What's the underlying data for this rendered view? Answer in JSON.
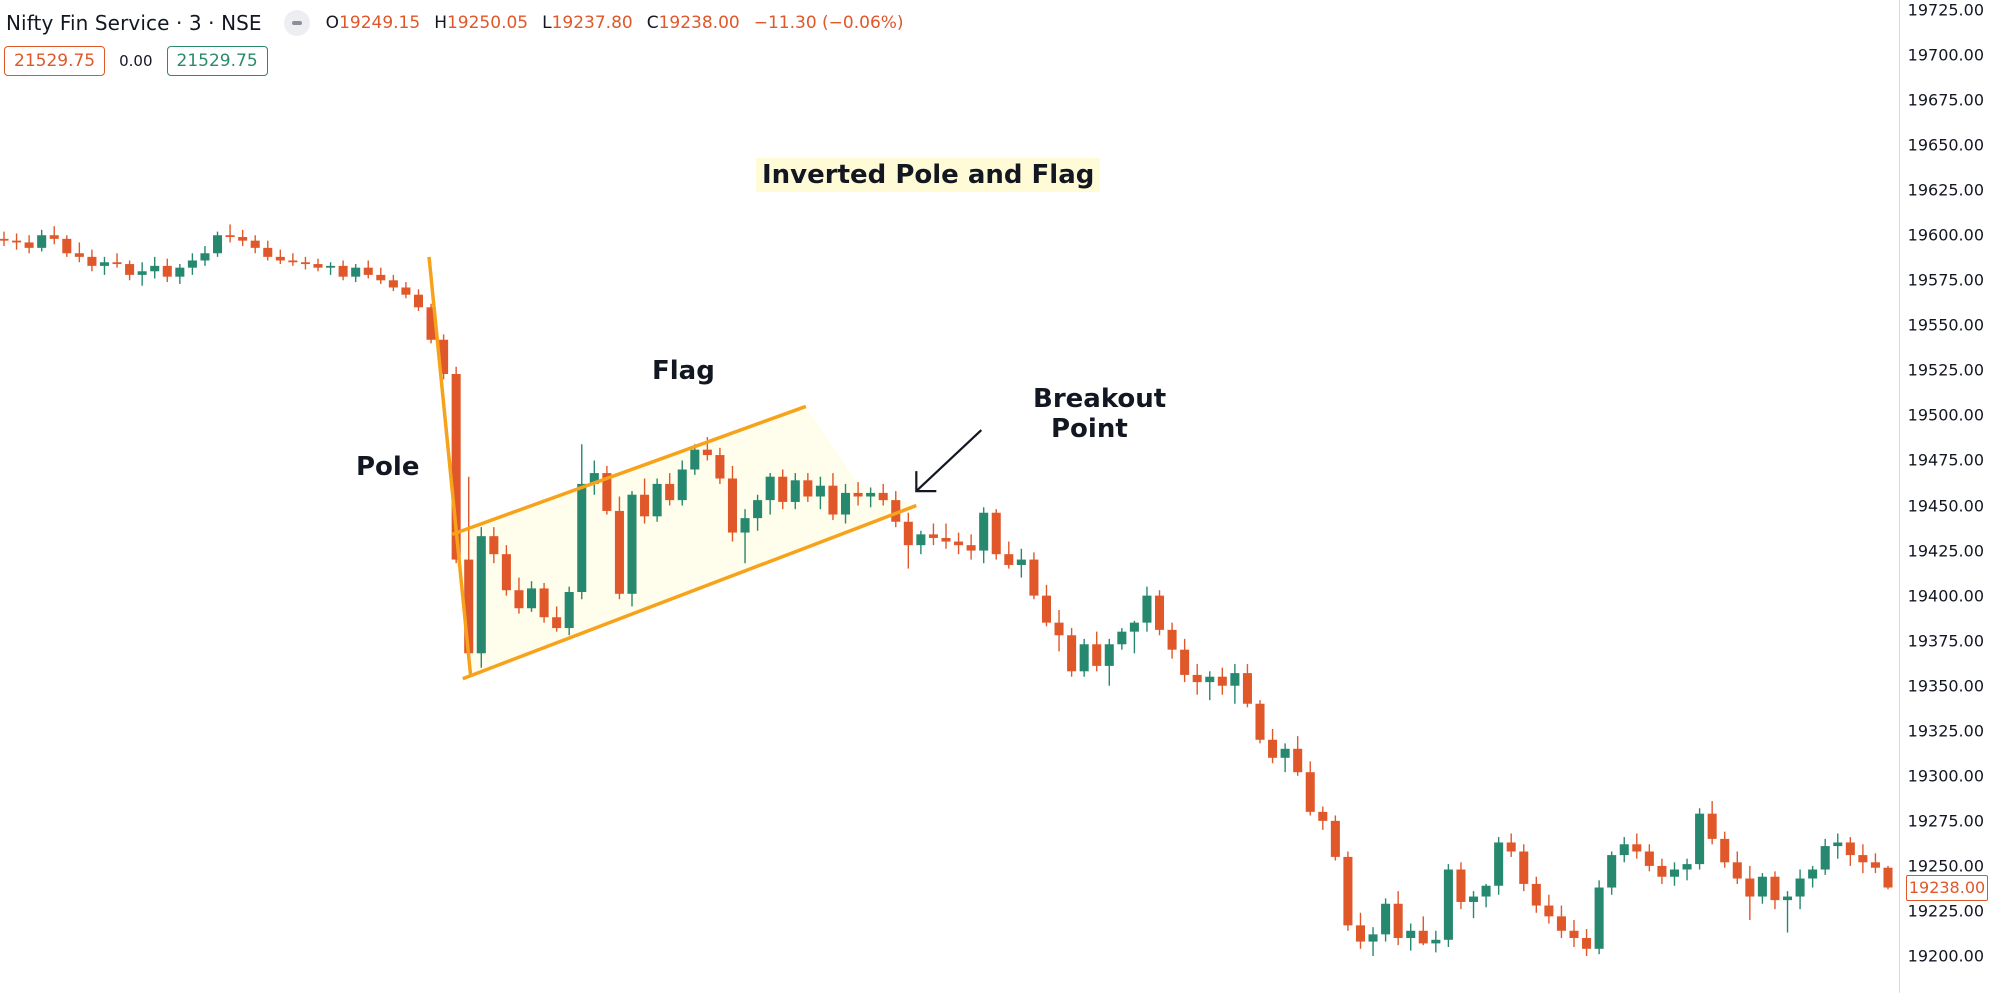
{
  "header": {
    "symbol": "Nifty Fin Service · 3 · NSE",
    "ohlc": [
      {
        "label": "O",
        "value": "19249.15"
      },
      {
        "label": "H",
        "value": "19250.05"
      },
      {
        "label": "L",
        "value": "19237.80"
      },
      {
        "label": "C",
        "value": "19238.00"
      }
    ],
    "change": "−11.30 (−0.06%)",
    "sell_price": "21529.75",
    "spread": "0.00",
    "buy_price": "21529.75"
  },
  "colors": {
    "up": "#26886e",
    "down": "#e0572a",
    "annotation": "#f7a21b",
    "flag_fill": "#fffdeb"
  },
  "annotations": {
    "title": "Inverted Pole and Flag",
    "pole": "Pole",
    "flag": "Flag",
    "breakout_line1": "Breakout",
    "breakout_line2": "Point"
  },
  "price_axis": {
    "ticks": [
      "19725.00",
      "19700.00",
      "19675.00",
      "19650.00",
      "19625.00",
      "19600.00",
      "19575.00",
      "19550.00",
      "19525.00",
      "19500.00",
      "19475.00",
      "19450.00",
      "19425.00",
      "19400.00",
      "19375.00",
      "19350.00",
      "19325.00",
      "19300.00",
      "19275.00",
      "19250.00",
      "19225.00",
      "19200.00"
    ],
    "last_price": "19238.00"
  },
  "chart_data": {
    "type": "candlestick",
    "title": "Inverted Pole and Flag",
    "ylim": [
      19195,
      19730
    ],
    "last_price": 19238.0,
    "candles_ohlc": [
      [
        19598,
        19602,
        19594,
        19597
      ],
      [
        19597,
        19601,
        19592,
        19596
      ],
      [
        19596,
        19600,
        19590,
        19593
      ],
      [
        19593,
        19603,
        19591,
        19600
      ],
      [
        19600,
        19605,
        19595,
        19598
      ],
      [
        19598,
        19600,
        19588,
        19590
      ],
      [
        19590,
        19596,
        19585,
        19588
      ],
      [
        19588,
        19592,
        19580,
        19583
      ],
      [
        19583,
        19588,
        19578,
        19585
      ],
      [
        19585,
        19590,
        19582,
        19584
      ],
      [
        19584,
        19586,
        19575,
        19578
      ],
      [
        19578,
        19585,
        19572,
        19580
      ],
      [
        19580,
        19588,
        19576,
        19583
      ],
      [
        19583,
        19587,
        19574,
        19577
      ],
      [
        19577,
        19584,
        19573,
        19582
      ],
      [
        19582,
        19590,
        19578,
        19586
      ],
      [
        19586,
        19594,
        19583,
        19590
      ],
      [
        19590,
        19602,
        19588,
        19600
      ],
      [
        19600,
        19606,
        19596,
        19599
      ],
      [
        19599,
        19603,
        19594,
        19597
      ],
      [
        19597,
        19600,
        19590,
        19593
      ],
      [
        19593,
        19597,
        19586,
        19588
      ],
      [
        19588,
        19592,
        19584,
        19586
      ],
      [
        19586,
        19590,
        19583,
        19585
      ],
      [
        19585,
        19588,
        19581,
        19584
      ],
      [
        19584,
        19587,
        19580,
        19582
      ],
      [
        19582,
        19585,
        19578,
        19583
      ],
      [
        19583,
        19586,
        19575,
        19577
      ],
      [
        19577,
        19584,
        19574,
        19582
      ],
      [
        19582,
        19586,
        19576,
        19578
      ],
      [
        19578,
        19582,
        19573,
        19575
      ],
      [
        19575,
        19578,
        19569,
        19571
      ],
      [
        19571,
        19574,
        19565,
        19567
      ],
      [
        19567,
        19570,
        19558,
        19560
      ],
      [
        19560,
        19562,
        19540,
        19542
      ],
      [
        19542,
        19545,
        19520,
        19523
      ],
      [
        19523,
        19527,
        19418,
        19420
      ],
      [
        19420,
        19466,
        19364,
        19368
      ],
      [
        19368,
        19438,
        19360,
        19433
      ],
      [
        19433,
        19438,
        19418,
        19423
      ],
      [
        19423,
        19428,
        19400,
        19403
      ],
      [
        19403,
        19410,
        19390,
        19393
      ],
      [
        19393,
        19408,
        19391,
        19404
      ],
      [
        19404,
        19407,
        19385,
        19388
      ],
      [
        19388,
        19394,
        19380,
        19382
      ],
      [
        19382,
        19405,
        19378,
        19402
      ],
      [
        19402,
        19484,
        19398,
        19462
      ],
      [
        19462,
        19475,
        19456,
        19468
      ],
      [
        19468,
        19472,
        19445,
        19447
      ],
      [
        19447,
        19455,
        19398,
        19401
      ],
      [
        19401,
        19458,
        19394,
        19456
      ],
      [
        19456,
        19465,
        19440,
        19444
      ],
      [
        19444,
        19465,
        19441,
        19462
      ],
      [
        19462,
        19468,
        19450,
        19453
      ],
      [
        19453,
        19475,
        19450,
        19470
      ],
      [
        19470,
        19484,
        19467,
        19481
      ],
      [
        19481,
        19488,
        19475,
        19478
      ],
      [
        19478,
        19482,
        19462,
        19465
      ],
      [
        19465,
        19472,
        19430,
        19435
      ],
      [
        19435,
        19448,
        19418,
        19443
      ],
      [
        19443,
        19456,
        19436,
        19453
      ],
      [
        19453,
        19468,
        19445,
        19466
      ],
      [
        19466,
        19470,
        19448,
        19452
      ],
      [
        19452,
        19468,
        19448,
        19464
      ],
      [
        19464,
        19468,
        19452,
        19455
      ],
      [
        19455,
        19466,
        19448,
        19461
      ],
      [
        19461,
        19468,
        19442,
        19445
      ],
      [
        19445,
        19462,
        19440,
        19457
      ],
      [
        19457,
        19463,
        19450,
        19455
      ],
      [
        19455,
        19460,
        19449,
        19457
      ],
      [
        19457,
        19462,
        19450,
        19453
      ],
      [
        19453,
        19458,
        19438,
        19441
      ],
      [
        19441,
        19446,
        19415,
        19428
      ],
      [
        19428,
        19436,
        19423,
        19434
      ],
      [
        19434,
        19440,
        19428,
        19432
      ],
      [
        19432,
        19440,
        19426,
        19430
      ],
      [
        19430,
        19435,
        19423,
        19428
      ],
      [
        19428,
        19434,
        19420,
        19425
      ],
      [
        19425,
        19449,
        19418,
        19446
      ],
      [
        19446,
        19448,
        19420,
        19423
      ],
      [
        19423,
        19430,
        19415,
        19417
      ],
      [
        19417,
        19426,
        19410,
        19420
      ],
      [
        19420,
        19424,
        19398,
        19400
      ],
      [
        19400,
        19406,
        19383,
        19385
      ],
      [
        19385,
        19392,
        19369,
        19378
      ],
      [
        19378,
        19382,
        19355,
        19358
      ],
      [
        19358,
        19376,
        19355,
        19373
      ],
      [
        19373,
        19380,
        19358,
        19361
      ],
      [
        19361,
        19376,
        19350,
        19373
      ],
      [
        19373,
        19382,
        19370,
        19380
      ],
      [
        19380,
        19386,
        19368,
        19385
      ],
      [
        19385,
        19405,
        19380,
        19400
      ],
      [
        19400,
        19403,
        19378,
        19381
      ],
      [
        19381,
        19385,
        19365,
        19370
      ],
      [
        19370,
        19376,
        19352,
        19356
      ],
      [
        19356,
        19362,
        19345,
        19352
      ],
      [
        19352,
        19358,
        19342,
        19355
      ],
      [
        19355,
        19360,
        19345,
        19350
      ],
      [
        19350,
        19362,
        19340,
        19357
      ],
      [
        19357,
        19362,
        19338,
        19340
      ],
      [
        19340,
        19342,
        19318,
        19320
      ],
      [
        19320,
        19326,
        19307,
        19310
      ],
      [
        19310,
        19318,
        19302,
        19315
      ],
      [
        19315,
        19322,
        19300,
        19302
      ],
      [
        19302,
        19308,
        19278,
        19280
      ],
      [
        19280,
        19283,
        19270,
        19275
      ],
      [
        19275,
        19278,
        19253,
        19255
      ],
      [
        19255,
        19258,
        19214,
        19217
      ],
      [
        19217,
        19224,
        19204,
        19208
      ],
      [
        19208,
        19216,
        19200,
        19212
      ],
      [
        19212,
        19232,
        19208,
        19229
      ],
      [
        19229,
        19236,
        19206,
        19210
      ],
      [
        19210,
        19218,
        19203,
        19214
      ],
      [
        19214,
        19222,
        19206,
        19207
      ],
      [
        19207,
        19214,
        19202,
        19209
      ],
      [
        19209,
        19251,
        19205,
        19248
      ],
      [
        19248,
        19252,
        19226,
        19230
      ],
      [
        19230,
        19236,
        19221,
        19233
      ],
      [
        19233,
        19240,
        19227,
        19239
      ],
      [
        19239,
        19266,
        19234,
        19263
      ],
      [
        19263,
        19268,
        19255,
        19258
      ],
      [
        19258,
        19262,
        19236,
        19240
      ],
      [
        19240,
        19244,
        19224,
        19228
      ],
      [
        19228,
        19234,
        19218,
        19222
      ],
      [
        19222,
        19228,
        19210,
        19214
      ],
      [
        19214,
        19220,
        19205,
        19210
      ],
      [
        19210,
        19215,
        19200,
        19204
      ],
      [
        19204,
        19242,
        19201,
        19238
      ],
      [
        19238,
        19258,
        19234,
        19256
      ],
      [
        19256,
        19266,
        19252,
        19262
      ],
      [
        19262,
        19268,
        19254,
        19258
      ],
      [
        19258,
        19262,
        19247,
        19250
      ],
      [
        19250,
        19254,
        19240,
        19244
      ],
      [
        19244,
        19252,
        19239,
        19248
      ],
      [
        19248,
        19254,
        19242,
        19251
      ],
      [
        19251,
        19282,
        19248,
        19279
      ],
      [
        19279,
        19286,
        19262,
        19265
      ],
      [
        19265,
        19269,
        19249,
        19252
      ],
      [
        19252,
        19258,
        19240,
        19243
      ],
      [
        19243,
        19250,
        19220,
        19233
      ],
      [
        19233,
        19246,
        19229,
        19244
      ],
      [
        19244,
        19247,
        19226,
        19231
      ],
      [
        19231,
        19236,
        19213,
        19233
      ],
      [
        19233,
        19248,
        19226,
        19243
      ],
      [
        19243,
        19250,
        19238,
        19248
      ],
      [
        19248,
        19265,
        19245,
        19261
      ],
      [
        19261,
        19268,
        19254,
        19263
      ],
      [
        19263,
        19266,
        19250,
        19256
      ],
      [
        19256,
        19262,
        19246,
        19252
      ],
      [
        19252,
        19257,
        19246,
        19249
      ],
      [
        19249,
        19250,
        19237,
        19238
      ]
    ]
  }
}
